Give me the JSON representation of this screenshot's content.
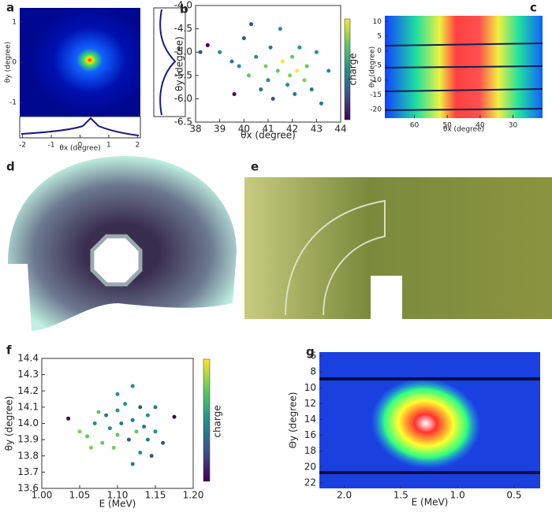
{
  "chart_data": [
    {
      "type": "image",
      "label": "a",
      "xlabel": "θx (degree)",
      "ylabel": "θy (degree)",
      "xlim": [
        -2.1,
        2.1
      ],
      "xticks": [
        -2,
        -1,
        0,
        1,
        2
      ],
      "ylim": [
        -1.35,
        1.35
      ],
      "yticks": [
        -1,
        0,
        1
      ]
    },
    {
      "type": "scatter",
      "label": "b",
      "xlabel": "θx (degree)",
      "ylabel": "θy (degree)",
      "colorbar_label": "charge",
      "xlim": [
        38,
        44
      ],
      "xticks": [
        38,
        39,
        40,
        41,
        42,
        43,
        44
      ],
      "ylim": [
        -6.5,
        -4.0
      ],
      "yticks": [
        -6.5,
        {
          "value": -6,
          "label": "-6.0"
        },
        -5.5,
        {
          "value": -5,
          "label": "-5.0"
        },
        -4.5,
        {
          "value": -4,
          "label": "-4.0"
        }
      ],
      "x": [
        38.2,
        38.5,
        39.0,
        39.5,
        39.8,
        40.0,
        40.2,
        40.3,
        40.5,
        40.7,
        40.9,
        41.0,
        41.1,
        41.2,
        41.4,
        41.5,
        41.6,
        41.8,
        41.9,
        42.0,
        42.1,
        42.2,
        42.3,
        42.5,
        42.6,
        42.8,
        43.0,
        43.2,
        43.5,
        39.6
      ],
      "y": [
        -5.0,
        -4.85,
        -5.0,
        -5.2,
        -5.3,
        -4.7,
        -5.5,
        -4.4,
        -5.1,
        -5.8,
        -5.3,
        -5.6,
        -4.9,
        -6.0,
        -5.4,
        -4.5,
        -5.2,
        -5.7,
        -5.5,
        -5.1,
        -5.9,
        -5.4,
        -4.9,
        -5.6,
        -5.3,
        -5.8,
        -5.0,
        -6.1,
        -5.4,
        -5.9
      ],
      "point_colors": [
        "#3b528b",
        "#440154",
        "#21918c",
        "#2a788e",
        "#21918c",
        "#3b528b",
        "#5ec962",
        "#3b528b",
        "#21918c",
        "#2a788e",
        "#7ad151",
        "#21918c",
        "#2a788e",
        "#3b528b",
        "#5ec962",
        "#21918c",
        "#fde725",
        "#21918c",
        "#7ad151",
        "#5ec962",
        "#2a788e",
        "#fde725",
        "#21918c",
        "#7ad151",
        "#5ec962",
        "#2a788e",
        "#21918c",
        "#2a788e",
        "#21918c",
        "#440154"
      ]
    },
    {
      "type": "image",
      "label": "c",
      "xlabel": "θx (degree)",
      "ylabel": "θy (degree)",
      "xlim": [
        69,
        21
      ],
      "xticks": [
        60,
        50,
        40,
        30
      ],
      "ylim": [
        -23,
        12
      ],
      "yticks": [
        10,
        5,
        0,
        -5,
        -10,
        -15,
        -20
      ]
    },
    {
      "type": "image",
      "label": "d"
    },
    {
      "type": "image",
      "label": "e"
    },
    {
      "type": "scatter",
      "label": "f",
      "xlabel": "E (MeV)",
      "ylabel": "θy (degree)",
      "colorbar_label": "charge",
      "xlim": [
        1.0,
        1.2
      ],
      "xticks": [
        {
          "value": 1,
          "label": "1.00"
        },
        1.05,
        {
          "value": 1.1,
          "label": "1.10"
        },
        1.15,
        {
          "value": 1.2,
          "label": "1.20"
        }
      ],
      "ylim": [
        13.6,
        14.4
      ],
      "yticks": [
        13.6,
        13.7,
        13.8,
        13.9,
        {
          "value": 14,
          "label": "14.0"
        },
        14.1,
        14.2,
        14.3,
        14.4
      ],
      "x": [
        1.035,
        1.05,
        1.06,
        1.07,
        1.08,
        1.085,
        1.09,
        1.095,
        1.1,
        1.1,
        1.105,
        1.11,
        1.115,
        1.12,
        1.12,
        1.125,
        1.13,
        1.13,
        1.135,
        1.14,
        1.14,
        1.145,
        1.15,
        1.15,
        1.175,
        1.16,
        1.065,
        1.075,
        1.1,
        1.12
      ],
      "y": [
        14.03,
        13.95,
        13.92,
        14.0,
        13.88,
        14.05,
        13.97,
        13.85,
        14.08,
        13.93,
        14.0,
        14.12,
        13.9,
        14.23,
        14.02,
        13.95,
        13.82,
        14.1,
        13.98,
        14.05,
        13.9,
        13.8,
        14.1,
        13.95,
        14.04,
        13.88,
        13.85,
        14.07,
        14.18,
        13.75
      ],
      "point_colors": [
        "#440154",
        "#7ad151",
        "#5ec962",
        "#21918c",
        "#5ec962",
        "#2a788e",
        "#21918c",
        "#7ad151",
        "#21918c",
        "#5ec962",
        "#2a788e",
        "#21918c",
        "#3b528b",
        "#21918c",
        "#2a788e",
        "#5ec962",
        "#21918c",
        "#3b528b",
        "#2a788e",
        "#21918c",
        "#2a788e",
        "#3b528b",
        "#2a788e",
        "#21918c",
        "#440154",
        "#3b528b",
        "#7ad151",
        "#5ec962",
        "#21918c",
        "#2a788e"
      ]
    },
    {
      "type": "image",
      "label": "g",
      "xlabel": "E (MeV)",
      "ylabel": "Θy (degree)",
      "xlim": [
        2.22,
        0.27
      ],
      "xticks": [
        {
          "value": 2,
          "label": "2.0"
        },
        1.5,
        {
          "value": 1,
          "label": "1.0"
        },
        0.5
      ],
      "ylim": [
        22.7,
        5.5
      ],
      "yticks": [
        6,
        8,
        10,
        12,
        14,
        16,
        18,
        20,
        22
      ]
    }
  ]
}
